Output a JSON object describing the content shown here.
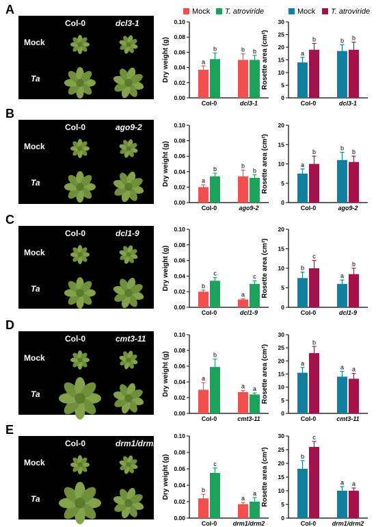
{
  "legend_left": {
    "mock": "Mock",
    "ta": "T. atroviride",
    "mock_color": "#f0504f",
    "ta_color": "#1aa35a"
  },
  "legend_right": {
    "mock": "Mock",
    "ta": "T. atroviride",
    "mock_color": "#1180a0",
    "ta_color": "#a3124a"
  },
  "row_labels": {
    "mock": "Mock",
    "ta": "Ta"
  },
  "panels": [
    {
      "letter": "A",
      "genotypes": [
        "Col-0",
        "dcl3-1"
      ]
    },
    {
      "letter": "B",
      "genotypes": [
        "Col-0",
        "ago9-2"
      ]
    },
    {
      "letter": "C",
      "genotypes": [
        "Col-0",
        "dcl1-9"
      ]
    },
    {
      "letter": "D",
      "genotypes": [
        "Col-0",
        "cmt3-11"
      ]
    },
    {
      "letter": "E",
      "genotypes": [
        "Col-0",
        "drm1/drm2"
      ]
    }
  ],
  "chart_data": [
    {
      "type": "bar",
      "panel": "A",
      "metric": "dry",
      "ylabel": "Dry weight (g)",
      "ylim": [
        0,
        0.1
      ],
      "yticks": [
        "0.00",
        "0.02",
        "0.04",
        "0.06",
        "0.08",
        "0.10"
      ],
      "categories": [
        "Col-0",
        "dcl3-1"
      ],
      "series": [
        {
          "name": "Mock",
          "values": [
            0.037,
            0.05
          ],
          "errors": [
            0.005,
            0.008
          ],
          "letters": [
            "a",
            "b"
          ]
        },
        {
          "name": "T. atroviride",
          "values": [
            0.051,
            0.05
          ],
          "errors": [
            0.008,
            0.006
          ],
          "letters": [
            "b",
            "b"
          ]
        }
      ]
    },
    {
      "type": "bar",
      "panel": "A",
      "metric": "area",
      "ylabel": "Rosette area (cm²)",
      "ylim": [
        0,
        30
      ],
      "yticks": [
        "0",
        "5",
        "10",
        "15",
        "20",
        "25",
        "30"
      ],
      "categories": [
        "Col-0",
        "dcl3-1"
      ],
      "series": [
        {
          "name": "Mock",
          "values": [
            14,
            18.5
          ],
          "errors": [
            2,
            2.5
          ],
          "letters": [
            "a",
            "b"
          ]
        },
        {
          "name": "T. atroviride",
          "values": [
            19,
            19
          ],
          "errors": [
            2.5,
            3
          ],
          "letters": [
            "b",
            "b"
          ]
        }
      ]
    },
    {
      "type": "bar",
      "panel": "B",
      "metric": "dry",
      "ylabel": "Dry weight (g)",
      "ylim": [
        0,
        0.1
      ],
      "yticks": [
        "0.00",
        "0.02",
        "0.04",
        "0.06",
        "0.08",
        "0.10"
      ],
      "categories": [
        "Col-0",
        "ago9-2"
      ],
      "series": [
        {
          "name": "Mock",
          "values": [
            0.02,
            0.034
          ],
          "errors": [
            0.003,
            0.008
          ],
          "letters": [
            "a",
            "b"
          ]
        },
        {
          "name": "T. atroviride",
          "values": [
            0.034,
            0.032
          ],
          "errors": [
            0.004,
            0.004
          ],
          "letters": [
            "b",
            "b"
          ]
        }
      ]
    },
    {
      "type": "bar",
      "panel": "B",
      "metric": "area",
      "ylabel": "Rosette area (cm²)",
      "ylim": [
        0,
        20
      ],
      "yticks": [
        "0",
        "5",
        "10",
        "15",
        "20"
      ],
      "categories": [
        "Col-0",
        "ago9-2"
      ],
      "series": [
        {
          "name": "Mock",
          "values": [
            7.5,
            11
          ],
          "errors": [
            1.2,
            2
          ],
          "letters": [
            "a",
            "b"
          ]
        },
        {
          "name": "T. atroviride",
          "values": [
            10,
            10.5
          ],
          "errors": [
            2,
            1.5
          ],
          "letters": [
            "b",
            "b"
          ]
        }
      ]
    },
    {
      "type": "bar",
      "panel": "C",
      "metric": "dry",
      "ylabel": "Dry weight (g)",
      "ylim": [
        0,
        0.1
      ],
      "yticks": [
        "0.00",
        "0.02",
        "0.04",
        "0.06",
        "0.08",
        "0.10"
      ],
      "categories": [
        "Col-0",
        "dcl1-9"
      ],
      "series": [
        {
          "name": "Mock",
          "values": [
            0.02,
            0.01
          ],
          "errors": [
            0.002,
            0.001
          ],
          "letters": [
            "b",
            "a"
          ]
        },
        {
          "name": "T. atroviride",
          "values": [
            0.034,
            0.03
          ],
          "errors": [
            0.004,
            0.004
          ],
          "letters": [
            "c",
            "c"
          ]
        }
      ]
    },
    {
      "type": "bar",
      "panel": "C",
      "metric": "area",
      "ylabel": "Rosette area (cm²)",
      "ylim": [
        0,
        20
      ],
      "yticks": [
        "0",
        "5",
        "10",
        "15",
        "20"
      ],
      "categories": [
        "Col-0",
        "dcl1-9"
      ],
      "series": [
        {
          "name": "Mock",
          "values": [
            7.5,
            6
          ],
          "errors": [
            1.5,
            1
          ],
          "letters": [
            "b",
            "a"
          ]
        },
        {
          "name": "T. atroviride",
          "values": [
            10,
            8.5
          ],
          "errors": [
            2,
            1.5
          ],
          "letters": [
            "c",
            "b"
          ]
        }
      ]
    },
    {
      "type": "bar",
      "panel": "D",
      "metric": "dry",
      "ylabel": "Dry weight (g)",
      "ylim": [
        0,
        0.1
      ],
      "yticks": [
        "0.00",
        "0.02",
        "0.04",
        "0.06",
        "0.08",
        "0.10"
      ],
      "categories": [
        "Col-0",
        "cmt3-11"
      ],
      "series": [
        {
          "name": "Mock",
          "values": [
            0.03,
            0.027
          ],
          "errors": [
            0.009,
            0.002
          ],
          "letters": [
            "a",
            "a"
          ]
        },
        {
          "name": "T. atroviride",
          "values": [
            0.059,
            0.024
          ],
          "errors": [
            0.01,
            0.002
          ],
          "letters": [
            "b",
            "a"
          ]
        }
      ]
    },
    {
      "type": "bar",
      "panel": "D",
      "metric": "area",
      "ylabel": "Rosette area (cm²)",
      "ylim": [
        0,
        30
      ],
      "yticks": [
        "0",
        "5",
        "10",
        "15",
        "20",
        "25",
        "30"
      ],
      "categories": [
        "Col-0",
        "cmt3-11"
      ],
      "series": [
        {
          "name": "Mock",
          "values": [
            15.5,
            14
          ],
          "errors": [
            2,
            2
          ],
          "letters": [
            "a",
            "a"
          ]
        },
        {
          "name": "T. atroviride",
          "values": [
            23,
            13.2
          ],
          "errors": [
            2.5,
            2
          ],
          "letters": [
            "b",
            "a"
          ]
        }
      ]
    },
    {
      "type": "bar",
      "panel": "E",
      "metric": "dry",
      "ylabel": "Dry weight (g)",
      "ylim": [
        0,
        0.1
      ],
      "yticks": [
        "0.00",
        "0.02",
        "0.04",
        "0.06",
        "0.08",
        "0.10"
      ],
      "categories": [
        "Col-0",
        "drm1/drm2"
      ],
      "series": [
        {
          "name": "Mock",
          "values": [
            0.024,
            0.017
          ],
          "errors": [
            0.005,
            0.002
          ],
          "letters": [
            "b",
            "a"
          ]
        },
        {
          "name": "T. atroviride",
          "values": [
            0.055,
            0.02
          ],
          "errors": [
            0.006,
            0.005
          ],
          "letters": [
            "c",
            "a"
          ]
        }
      ]
    },
    {
      "type": "bar",
      "panel": "E",
      "metric": "area",
      "ylabel": "Rosette area (cm²)",
      "ylim": [
        0,
        30
      ],
      "yticks": [
        "0",
        "5",
        "10",
        "15",
        "20",
        "25",
        "30"
      ],
      "categories": [
        "Col-0",
        "drm1/drm2"
      ],
      "series": [
        {
          "name": "Mock",
          "values": [
            18,
            10
          ],
          "errors": [
            3,
            1.5
          ],
          "letters": [
            "b",
            "a"
          ]
        },
        {
          "name": "T. atroviride",
          "values": [
            26,
            10
          ],
          "errors": [
            2,
            1
          ],
          "letters": [
            "c",
            "a"
          ]
        }
      ]
    }
  ]
}
